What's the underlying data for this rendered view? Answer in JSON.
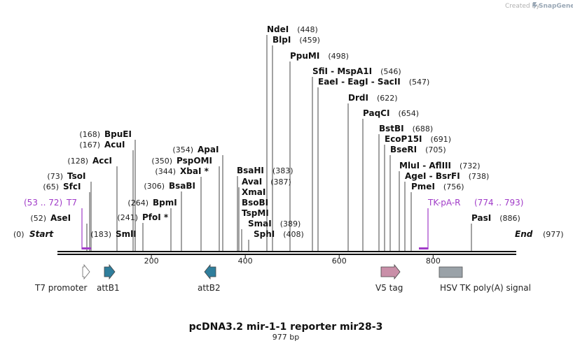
{
  "credit": {
    "prefix": "Created by",
    "brand": "SnapGene"
  },
  "title": "pcDNA3.2 mir-1-1 reporter mir28-3",
  "length_label": "977 bp",
  "seq_length": 977,
  "ends": {
    "start": {
      "pos": "(0)",
      "name": "Start"
    },
    "end": {
      "pos": "(977)",
      "name": "End"
    }
  },
  "ticks": [
    "200",
    "400",
    "600",
    "800"
  ],
  "sites": [
    {
      "pos": "(52)",
      "names": [
        "AseI"
      ]
    },
    {
      "pos": "(65)",
      "names": [
        "SfcI"
      ]
    },
    {
      "pos": "(73)",
      "names": [
        "TsoI"
      ]
    },
    {
      "pos": "(128)",
      "names": [
        "AccI"
      ]
    },
    {
      "pos": "(167)",
      "names": [
        "AcuI"
      ]
    },
    {
      "pos": "(168)",
      "names": [
        "BpuEI"
      ]
    },
    {
      "pos": "(183)",
      "names": [
        "SmlI"
      ]
    },
    {
      "pos": "(241)",
      "names": [
        "PfoI *"
      ]
    },
    {
      "pos": "(264)",
      "names": [
        "BpmI"
      ]
    },
    {
      "pos": "(306)",
      "names": [
        "BsaBI"
      ]
    },
    {
      "pos": "(344)",
      "names": [
        "XbaI *"
      ]
    },
    {
      "pos": "(350)",
      "names": [
        "PspOMI"
      ]
    },
    {
      "pos": "(354)",
      "names": [
        "ApaI"
      ]
    },
    {
      "pos": "(383)",
      "names": [
        "BsaHI"
      ]
    },
    {
      "pos": "(387)",
      "names": [
        "AvaI"
      ]
    },
    {
      "pos": "(387)",
      "names": [
        "XmaI"
      ]
    },
    {
      "pos": "(387)",
      "names": [
        "BsoBI"
      ]
    },
    {
      "pos": "(387)",
      "names": [
        "TspMI"
      ]
    },
    {
      "pos": "(389)",
      "names": [
        "SmaI"
      ]
    },
    {
      "pos": "(408)",
      "names": [
        "SphI"
      ]
    },
    {
      "pos": "(448)",
      "names": [
        "NdeI"
      ]
    },
    {
      "pos": "(459)",
      "names": [
        "BlpI"
      ]
    },
    {
      "pos": "(498)",
      "names": [
        "PpuMI"
      ]
    },
    {
      "pos": "(546)",
      "names": [
        "SfiI",
        "MspA1I"
      ]
    },
    {
      "pos": "(547)",
      "names": [
        "EaeI",
        "EagI",
        "SacII"
      ]
    },
    {
      "pos": "(622)",
      "names": [
        "DrdI"
      ]
    },
    {
      "pos": "(654)",
      "names": [
        "PaqCI"
      ]
    },
    {
      "pos": "(688)",
      "names": [
        "BstBI"
      ]
    },
    {
      "pos": "(691)",
      "names": [
        "EcoP15I"
      ]
    },
    {
      "pos": "(705)",
      "names": [
        "BseRI"
      ]
    },
    {
      "pos": "(732)",
      "names": [
        "MluI",
        "AflIII"
      ]
    },
    {
      "pos": "(738)",
      "names": [
        "AgeI",
        "BsrFI"
      ]
    },
    {
      "pos": "(756)",
      "names": [
        "PmeI"
      ]
    },
    {
      "pos": "(886)",
      "names": [
        "PasI"
      ]
    }
  ],
  "primers": [
    {
      "name": "T7",
      "range": "(53 .. 72)"
    },
    {
      "name": "TK-pA-R",
      "range": "(774 .. 793)"
    }
  ],
  "features": [
    {
      "name": "T7 promoter",
      "shape": "arrow-right",
      "color": "#ffffff"
    },
    {
      "name": "attB1",
      "shape": "arrow-right",
      "color": "#2f7e9c"
    },
    {
      "name": "attB2",
      "shape": "arrow-left",
      "color": "#2f7e9c"
    },
    {
      "name": "V5 tag",
      "shape": "arrow-right",
      "color": "#c98fa8"
    },
    {
      "name": "HSV TK poly(A) signal",
      "shape": "box",
      "color": "#9aa2a8"
    }
  ],
  "colors": {
    "primer": "#a03ac8",
    "backbone": "#111111"
  }
}
